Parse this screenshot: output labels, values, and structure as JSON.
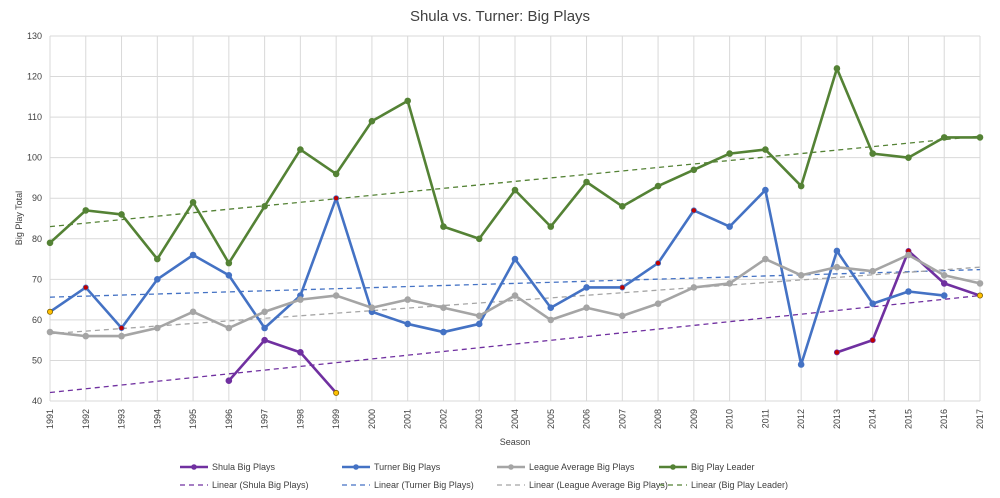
{
  "chart_data": {
    "type": "line",
    "title": "Shula vs. Turner: Big Plays",
    "xlabel": "Season",
    "ylabel": "Big Play Total",
    "ylim": [
      40,
      130
    ],
    "yticks": [
      "40",
      "50",
      "60",
      "70",
      "80",
      "90",
      "100",
      "110",
      "120",
      "130"
    ],
    "grid": true,
    "legend_position": "bottom",
    "categories": [
      "1991",
      "1992",
      "1993",
      "1994",
      "1995",
      "1996",
      "1997",
      "1998",
      "1999",
      "2000",
      "2001",
      "2002",
      "2003",
      "2004",
      "2005",
      "2006",
      "2007",
      "2008",
      "2009",
      "2010",
      "2011",
      "2012",
      "2013",
      "2014",
      "2015",
      "2016",
      "2017"
    ],
    "series": [
      {
        "name": "Shula Big Plays",
        "color": "#7030a0",
        "values": [
          null,
          null,
          null,
          null,
          null,
          45,
          55,
          52,
          42,
          null,
          null,
          null,
          null,
          null,
          null,
          null,
          null,
          null,
          null,
          null,
          null,
          null,
          52,
          55,
          77,
          69,
          66
        ]
      },
      {
        "name": "Turner Big Plays",
        "color": "#4472c4",
        "values": [
          62,
          68,
          58,
          70,
          76,
          71,
          58,
          66,
          90,
          62,
          59,
          57,
          59,
          75,
          63,
          68,
          68,
          74,
          87,
          83,
          92,
          49,
          77,
          64,
          67,
          66,
          null
        ]
      },
      {
        "name": "League Average Big Plays",
        "color": "#a5a5a5",
        "values": [
          57,
          56,
          56,
          58,
          62,
          58,
          62,
          65,
          66,
          63,
          65,
          63,
          61,
          66,
          60,
          63,
          61,
          64,
          68,
          69,
          75,
          71,
          73,
          72,
          76,
          71,
          69
        ]
      },
      {
        "name": "Big Play Leader",
        "color": "#548235",
        "values": [
          79,
          87,
          86,
          75,
          89,
          74,
          88,
          102,
          96,
          109,
          114,
          83,
          80,
          92,
          83,
          94,
          88,
          93,
          97,
          101,
          102,
          93,
          122,
          101,
          100,
          105,
          105
        ]
      }
    ],
    "trendlines": [
      {
        "name": "Linear (Shula Big Plays)",
        "color": "#7030a0",
        "start": 42.1,
        "end": 66.0
      },
      {
        "name": "Linear (Turner Big Plays)",
        "color": "#4472c4",
        "start": 65.6,
        "end": 72.4
      },
      {
        "name": "Linear (League Average Big Plays)",
        "color": "#a5a5a5",
        "start": 56.6,
        "end": 73.0
      },
      {
        "name": "Linear (Big Play Leader)",
        "color": "#548235",
        "start": 83.0,
        "end": 105.3
      }
    ],
    "highlight_points": [
      {
        "series": "Turner Big Plays",
        "x": "1992",
        "color": "#c00000"
      },
      {
        "series": "Turner Big Plays",
        "x": "1993",
        "color": "#c00000"
      },
      {
        "series": "Turner Big Plays",
        "x": "1999",
        "color": "#c00000"
      },
      {
        "series": "Turner Big Plays",
        "x": "2007",
        "color": "#c00000"
      },
      {
        "series": "Turner Big Plays",
        "x": "2008",
        "color": "#c00000"
      },
      {
        "series": "Turner Big Plays",
        "x": "2009",
        "color": "#c00000"
      },
      {
        "series": "Shula Big Plays",
        "x": "2013",
        "color": "#c00000"
      },
      {
        "series": "Shula Big Plays",
        "x": "2014",
        "color": "#c00000"
      },
      {
        "series": "Shula Big Plays",
        "x": "2015",
        "color": "#c00000"
      },
      {
        "series": "Turner Big Plays",
        "x": "1991",
        "color": "#ffc000"
      },
      {
        "series": "Shula Big Plays",
        "x": "1999",
        "color": "#ffc000"
      },
      {
        "series": "Shula Big Plays",
        "x": "2017",
        "color": "#ffc000"
      }
    ],
    "legend": {
      "row1": [
        "Shula Big Plays",
        "Turner Big Plays",
        "League Average Big Plays",
        "Big Play Leader"
      ],
      "row2": [
        "Linear (Shula Big Plays)",
        "Linear (Turner Big Plays)",
        "Linear (League Average Big Plays)",
        "Linear (Big Play Leader)"
      ]
    }
  }
}
